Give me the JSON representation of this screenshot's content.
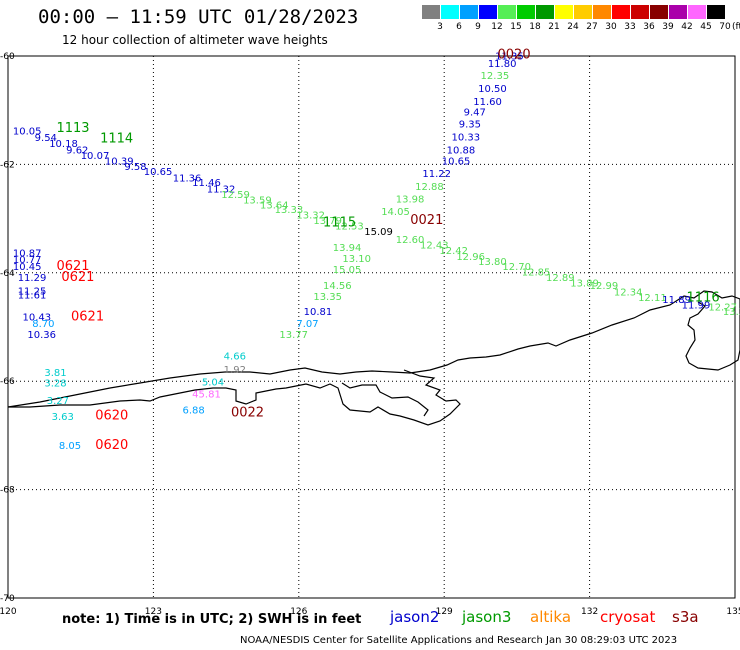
{
  "header": {
    "title": "00:00 – 11:59 UTC 01/28/2023",
    "subtitle": "12 hour collection of altimeter wave heights"
  },
  "legend": {
    "unit": "(ft)",
    "bins": [
      {
        "label": "3",
        "color": "#808080"
      },
      {
        "label": "6",
        "color": "#00ffff"
      },
      {
        "label": "9",
        "color": "#00a0ff"
      },
      {
        "label": "12",
        "color": "#0000ff"
      },
      {
        "label": "15",
        "color": "#55ee55"
      },
      {
        "label": "18",
        "color": "#00cc00"
      },
      {
        "label": "21",
        "color": "#009900"
      },
      {
        "label": "24",
        "color": "#ffff00"
      },
      {
        "label": "27",
        "color": "#ffcc00"
      },
      {
        "label": "30",
        "color": "#ff8800"
      },
      {
        "label": "33",
        "color": "#ff0000"
      },
      {
        "label": "36",
        "color": "#cc0000"
      },
      {
        "label": "39",
        "color": "#880000"
      },
      {
        "label": "42",
        "color": "#aa00aa"
      },
      {
        "label": "45",
        "color": "#ff66ff"
      },
      {
        "label": "70",
        "color": "#000000"
      }
    ]
  },
  "axes": {
    "lon_ticks": [
      "120",
      "123",
      "126",
      "129",
      "132",
      "135"
    ],
    "lat_ticks": [
      "-60",
      "-62",
      "-64",
      "-66",
      "-68",
      "-70"
    ]
  },
  "tracks": [
    {
      "time": "0020",
      "time_color": "#880000",
      "values": [
        {
          "t": "11.35",
          "c": "#0000cc",
          "lon": 130.05,
          "lat": -60.06
        },
        {
          "t": "11.80",
          "c": "#0000cc",
          "lon": 129.9,
          "lat": -60.2
        },
        {
          "t": "12.35",
          "c": "#55dd55",
          "lon": 129.75,
          "lat": -60.42
        },
        {
          "t": "10.50",
          "c": "#0000cc",
          "lon": 129.7,
          "lat": -60.66
        },
        {
          "t": "11.60",
          "c": "#0000cc",
          "lon": 129.6,
          "lat": -60.9
        },
        {
          "t": "9.47",
          "c": "#0000cc",
          "lon": 129.4,
          "lat": -61.1
        },
        {
          "t": "9.35",
          "c": "#0000cc",
          "lon": 129.3,
          "lat": -61.32
        },
        {
          "t": "10.33",
          "c": "#0000cc",
          "lon": 129.15,
          "lat": -61.56
        },
        {
          "t": "10.88",
          "c": "#0000cc",
          "lon": 129.05,
          "lat": -61.8
        },
        {
          "t": "10.65",
          "c": "#0000cc",
          "lon": 128.95,
          "lat": -62.0
        },
        {
          "t": "11.22",
          "c": "#0000cc",
          "lon": 128.55,
          "lat": -62.23
        },
        {
          "t": "12.88",
          "c": "#55dd55",
          "lon": 128.4,
          "lat": -62.47
        },
        {
          "t": "13.98",
          "c": "#55dd55",
          "lon": 128.0,
          "lat": -62.7
        },
        {
          "t": "14.05",
          "c": "#55dd55",
          "lon": 127.7,
          "lat": -62.93
        },
        {
          "t": "15.05",
          "c": "#55dd55",
          "lon": 126.7,
          "lat": -64.0
        },
        {
          "t": "13.94",
          "c": "#55dd55",
          "lon": 126.7,
          "lat": -63.6
        },
        {
          "t": "13.10",
          "c": "#55dd55",
          "lon": 126.9,
          "lat": -63.8
        },
        {
          "t": "14.56",
          "c": "#55dd55",
          "lon": 126.5,
          "lat": -64.3
        },
        {
          "t": "13.35",
          "c": "#55dd55",
          "lon": 126.3,
          "lat": -64.5
        },
        {
          "t": "10.81",
          "c": "#0000cc",
          "lon": 126.1,
          "lat": -64.78
        },
        {
          "t": "7.07",
          "c": "#00a0ff",
          "lon": 125.95,
          "lat": -65.0
        },
        {
          "t": "13.77",
          "c": "#55dd55",
          "lon": 125.6,
          "lat": -65.2
        },
        {
          "t": "4.66",
          "c": "#00cccc",
          "lon": 124.45,
          "lat": -65.6
        },
        {
          "t": "1.92",
          "c": "#808080",
          "lon": 124.45,
          "lat": -65.85
        },
        {
          "t": "5.04",
          "c": "#00cccc",
          "lon": 124.0,
          "lat": -66.08
        },
        {
          "t": "45.81",
          "c": "#ff66ff",
          "lon": 123.8,
          "lat": -66.3
        },
        {
          "t": "6.88",
          "c": "#00a0ff",
          "lon": 123.6,
          "lat": -66.6
        }
      ],
      "time_lon": 130.1,
      "time_lat": -60.05
    },
    {
      "time": "0021",
      "time_color": "#880000",
      "time_lon": 128.3,
      "time_lat": -63.1
    },
    {
      "time": "1115",
      "time_color": "#009900",
      "time_lon": 126.5,
      "time_lat": -63.15
    },
    {
      "time": "1116",
      "time_color": "#009900",
      "time_lon": 134.0,
      "time_lat": -64.53
    },
    {
      "time": "0022",
      "time_color": "#880000",
      "time_lon": 124.6,
      "time_lat": -66.65
    },
    {
      "time": "1113",
      "time_color": "#009900",
      "time_lon": 121.0,
      "time_lat": -61.4
    },
    {
      "time": "1114",
      "time_color": "#009900",
      "time_lon": 121.9,
      "time_lat": -61.6
    },
    {
      "time": "0621",
      "time_color": "#ff0000",
      "time_lon": 121.0,
      "time_lat": -63.95
    },
    {
      "time": "0621",
      "time_color": "#ff0000",
      "time_lon": 121.1,
      "time_lat": -64.15
    },
    {
      "time": "0621",
      "time_color": "#ff0000",
      "time_lon": 121.3,
      "time_lat": -64.88
    },
    {
      "time": "0620",
      "time_color": "#ff0000",
      "time_lon": 121.8,
      "time_lat": -66.71
    },
    {
      "time": "0620",
      "time_color": "#ff0000",
      "time_lon": 121.8,
      "time_lat": -67.25
    }
  ],
  "labels": [
    {
      "t": "10.05",
      "c": "#0000cc",
      "lon": 120.1,
      "lat": -61.45
    },
    {
      "t": "9.54",
      "c": "#0000cc",
      "lon": 120.55,
      "lat": -61.57
    },
    {
      "t": "10.18",
      "c": "#0000cc",
      "lon": 120.85,
      "lat": -61.68
    },
    {
      "t": "9.62",
      "c": "#0000cc",
      "lon": 121.2,
      "lat": -61.8
    },
    {
      "t": "10.07",
      "c": "#0000cc",
      "lon": 121.5,
      "lat": -61.9
    },
    {
      "t": "10.39",
      "c": "#0000cc",
      "lon": 122.0,
      "lat": -62.0
    },
    {
      "t": "9.58",
      "c": "#0000cc",
      "lon": 122.4,
      "lat": -62.1
    },
    {
      "t": "10.65",
      "c": "#0000cc",
      "lon": 122.8,
      "lat": -62.2
    },
    {
      "t": "11.36",
      "c": "#0000cc",
      "lon": 123.4,
      "lat": -62.32
    },
    {
      "t": "11.46",
      "c": "#0000cc",
      "lon": 123.8,
      "lat": -62.4
    },
    {
      "t": "11.32",
      "c": "#0000cc",
      "lon": 124.1,
      "lat": -62.52
    },
    {
      "t": "12.59",
      "c": "#55dd55",
      "lon": 124.4,
      "lat": -62.62
    },
    {
      "t": "13.59",
      "c": "#55dd55",
      "lon": 124.85,
      "lat": -62.72
    },
    {
      "t": "13.64",
      "c": "#55dd55",
      "lon": 125.2,
      "lat": -62.81
    },
    {
      "t": "13.33",
      "c": "#55dd55",
      "lon": 125.5,
      "lat": -62.9
    },
    {
      "t": "13.32",
      "c": "#55dd55",
      "lon": 125.95,
      "lat": -63.0
    },
    {
      "t": "13.79",
      "c": "#55dd55",
      "lon": 126.3,
      "lat": -63.1
    },
    {
      "t": "12.53",
      "c": "#55dd55",
      "lon": 126.75,
      "lat": -63.2
    },
    {
      "t": "15.09",
      "c": "#000000",
      "lon": 127.35,
      "lat": -63.3
    },
    {
      "t": "12.60",
      "c": "#55dd55",
      "lon": 128.0,
      "lat": -63.45
    },
    {
      "t": "12.43",
      "c": "#55dd55",
      "lon": 128.5,
      "lat": -63.55
    },
    {
      "t": "12.42",
      "c": "#55dd55",
      "lon": 128.9,
      "lat": -63.65
    },
    {
      "t": "12.96",
      "c": "#55dd55",
      "lon": 129.25,
      "lat": -63.76
    },
    {
      "t": "13.80",
      "c": "#55dd55",
      "lon": 129.7,
      "lat": -63.86
    },
    {
      "t": "12.70",
      "c": "#55dd55",
      "lon": 130.2,
      "lat": -63.95
    },
    {
      "t": "12.85",
      "c": "#55dd55",
      "lon": 130.6,
      "lat": -64.05
    },
    {
      "t": "12.89",
      "c": "#55dd55",
      "lon": 131.1,
      "lat": -64.15
    },
    {
      "t": "13.89",
      "c": "#55dd55",
      "lon": 131.6,
      "lat": -64.25
    },
    {
      "t": "12.99",
      "c": "#55dd55",
      "lon": 132.0,
      "lat": -64.3
    },
    {
      "t": "12.34",
      "c": "#55dd55",
      "lon": 132.5,
      "lat": -64.42
    },
    {
      "t": "12.11",
      "c": "#55dd55",
      "lon": 133.0,
      "lat": -64.52
    },
    {
      "t": "11.89",
      "c": "#0000cc",
      "lon": 133.5,
      "lat": -64.56
    },
    {
      "t": "11.99",
      "c": "#0000cc",
      "lon": 133.9,
      "lat": -64.66
    },
    {
      "t": "12.27",
      "c": "#55dd55",
      "lon": 134.45,
      "lat": -64.7
    },
    {
      "t": "13.34",
      "c": "#55dd55",
      "lon": 134.75,
      "lat": -64.78
    },
    {
      "t": "10.87",
      "c": "#0000cc",
      "lon": 120.1,
      "lat": -63.7
    },
    {
      "t": "10.77",
      "c": "#0000cc",
      "lon": 120.1,
      "lat": -63.82
    },
    {
      "t": "10.45",
      "c": "#0000cc",
      "lon": 120.1,
      "lat": -63.95
    },
    {
      "t": "11.29",
      "c": "#0000cc",
      "lon": 120.2,
      "lat": -64.15
    },
    {
      "t": "11.25",
      "c": "#0000cc",
      "lon": 120.2,
      "lat": -64.4
    },
    {
      "t": "11.61",
      "c": "#0000cc",
      "lon": 120.2,
      "lat": -64.47
    },
    {
      "t": "10.43",
      "c": "#0000cc",
      "lon": 120.3,
      "lat": -64.88
    },
    {
      "t": "8.70",
      "c": "#00a0ff",
      "lon": 120.5,
      "lat": -65.0
    },
    {
      "t": "10.36",
      "c": "#0000cc",
      "lon": 120.4,
      "lat": -65.2
    },
    {
      "t": "3.81",
      "c": "#00cccc",
      "lon": 120.75,
      "lat": -65.9
    },
    {
      "t": "3.28",
      "c": "#00cccc",
      "lon": 120.75,
      "lat": -66.1
    },
    {
      "t": "3.27",
      "c": "#00cccc",
      "lon": 120.8,
      "lat": -66.42
    },
    {
      "t": "3.63",
      "c": "#00cccc",
      "lon": 120.9,
      "lat": -66.72
    },
    {
      "t": "8.05",
      "c": "#00a0ff",
      "lon": 121.05,
      "lat": -67.25
    }
  ],
  "footer": {
    "note": "note: 1) Time is in UTC; 2) SWH is in feet",
    "missions": [
      {
        "name": "jason2",
        "color": "#0000cc"
      },
      {
        "name": "jason3",
        "color": "#009900"
      },
      {
        "name": "altika",
        "color": "#ff8800"
      },
      {
        "name": "cryosat",
        "color": "#ff0000"
      },
      {
        "name": "s3a",
        "color": "#880000"
      }
    ],
    "credit": "NOAA/NESDIS Center for Satellite Applications and Research   Jan 30 08:29:03 UTC 2023"
  }
}
